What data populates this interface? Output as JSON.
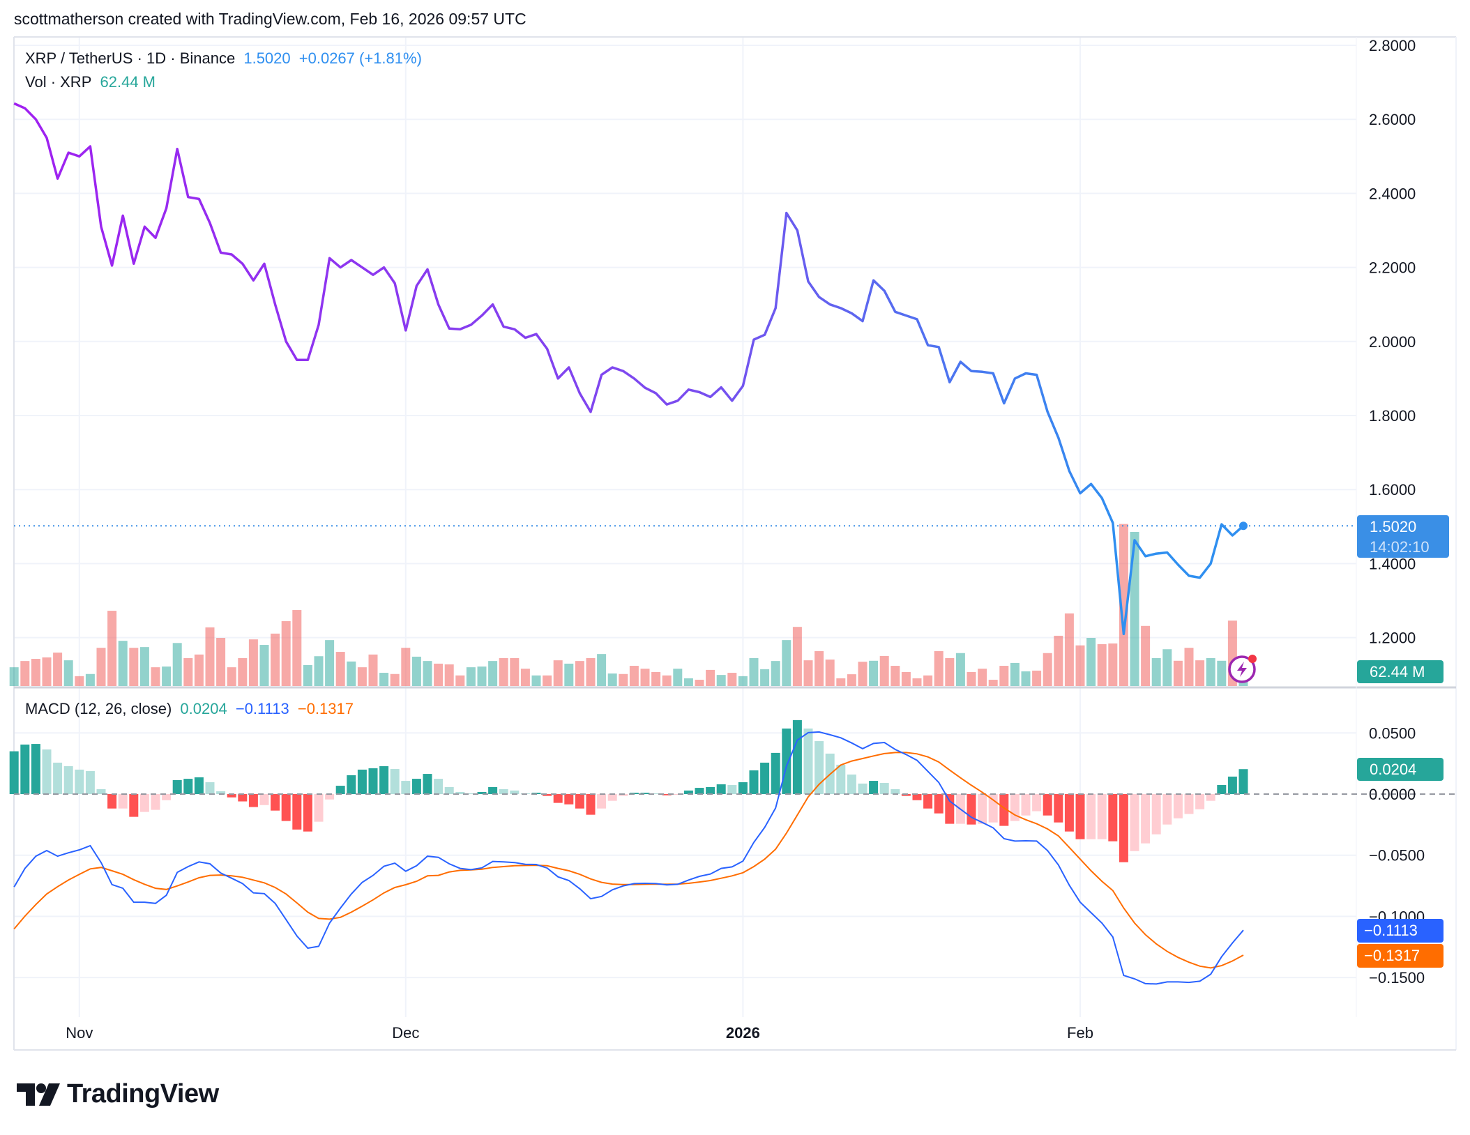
{
  "header": {
    "text": "scottmatherson created with TradingView.com, Feb 16, 2026 09:57 UTC"
  },
  "legend": {
    "symbol": "XRP / TetherUS · 1D · Binance",
    "price": "1.5020",
    "change": "+0.0267 (+1.81%)",
    "vol_label": "Vol · XRP",
    "vol_value": "62.44 M",
    "macd_label": "MACD (12, 26, close)",
    "macd_hist": "0.0204",
    "macd_line": "−0.1113",
    "macd_signal": "−0.1317"
  },
  "badges": {
    "price": "1.5020",
    "countdown": "14:02:10",
    "volume": "62.44 M",
    "hist": "0.0204",
    "macd": "−0.1113",
    "signal": "−0.1317"
  },
  "colors": {
    "line_start": "#a020f0",
    "line_mid": "#7a4cef",
    "line_end": "#2f8ff0",
    "up": "#26a69a",
    "down": "#ef5350",
    "hist_up_strong": "#26a69a",
    "hist_up_weak": "#b2dfdb",
    "hist_down_strong": "#ff5252",
    "hist_down_weak": "#ffcdd2",
    "macd": "#2962ff",
    "signal": "#ff6d00",
    "price_badge": "#3a8fe6"
  },
  "logo": {
    "text": "TradingView"
  },
  "chart_data": [
    {
      "type": "line",
      "title": "XRP / TetherUS · 1D · Binance",
      "ylim": [
        1.2,
        2.8
      ],
      "grid": true,
      "y_ticks": [
        {
          "value": 2.8,
          "label": "2.8000"
        },
        {
          "value": 2.6,
          "label": "2.6000"
        },
        {
          "value": 2.4,
          "label": "2.4000"
        },
        {
          "value": 2.2,
          "label": "2.2000"
        },
        {
          "value": 2.0,
          "label": "2.0000"
        },
        {
          "value": 1.8,
          "label": "1.8000"
        },
        {
          "value": 1.6,
          "label": "1.6000"
        },
        {
          "value": 1.4,
          "label": "1.4000"
        },
        {
          "value": 1.2,
          "label": "1.2000"
        }
      ],
      "x_ticks": [
        {
          "date": "2025-11-01",
          "label": "Nov"
        },
        {
          "date": "2025-12-01",
          "label": "Dec"
        },
        {
          "date": "2026-01-01",
          "label": "2026",
          "bold": true
        },
        {
          "date": "2026-02-01",
          "label": "Feb"
        }
      ],
      "dates": [
        "2025-10-26",
        "2025-10-27",
        "2025-10-28",
        "2025-10-29",
        "2025-10-30",
        "2025-10-31",
        "2025-11-01",
        "2025-11-02",
        "2025-11-03",
        "2025-11-04",
        "2025-11-05",
        "2025-11-06",
        "2025-11-07",
        "2025-11-08",
        "2025-11-09",
        "2025-11-10",
        "2025-11-11",
        "2025-11-12",
        "2025-11-13",
        "2025-11-14",
        "2025-11-15",
        "2025-11-16",
        "2025-11-17",
        "2025-11-18",
        "2025-11-19",
        "2025-11-20",
        "2025-11-21",
        "2025-11-22",
        "2025-11-23",
        "2025-11-24",
        "2025-11-25",
        "2025-11-26",
        "2025-11-27",
        "2025-11-28",
        "2025-11-29",
        "2025-11-30",
        "2025-12-01",
        "2025-12-02",
        "2025-12-03",
        "2025-12-04",
        "2025-12-05",
        "2025-12-06",
        "2025-12-07",
        "2025-12-08",
        "2025-12-09",
        "2025-12-10",
        "2025-12-11",
        "2025-12-12",
        "2025-12-13",
        "2025-12-14",
        "2025-12-15",
        "2025-12-16",
        "2025-12-17",
        "2025-12-18",
        "2025-12-19",
        "2025-12-20",
        "2025-12-21",
        "2025-12-22",
        "2025-12-23",
        "2025-12-24",
        "2025-12-25",
        "2025-12-26",
        "2025-12-27",
        "2025-12-28",
        "2025-12-29",
        "2025-12-30",
        "2025-12-31",
        "2026-01-01",
        "2026-01-02",
        "2026-01-03",
        "2026-01-04",
        "2026-01-05",
        "2026-01-06",
        "2026-01-07",
        "2026-01-08",
        "2026-01-09",
        "2026-01-10",
        "2026-01-11",
        "2026-01-12",
        "2026-01-13",
        "2026-01-14",
        "2026-01-15",
        "2026-01-16",
        "2026-01-17",
        "2026-01-18",
        "2026-01-19",
        "2026-01-20",
        "2026-01-21",
        "2026-01-22",
        "2026-01-23",
        "2026-01-24",
        "2026-01-25",
        "2026-01-26",
        "2026-01-27",
        "2026-01-28",
        "2026-01-29",
        "2026-01-30",
        "2026-01-31",
        "2026-02-01",
        "2026-02-02",
        "2026-02-03",
        "2026-02-04",
        "2026-02-05",
        "2026-02-06",
        "2026-02-07",
        "2026-02-08",
        "2026-02-09",
        "2026-02-10",
        "2026-02-11",
        "2026-02-12",
        "2026-02-13",
        "2026-02-14",
        "2026-02-15",
        "2026-02-16"
      ],
      "close": [
        2.643,
        2.63,
        2.6,
        2.55,
        2.44,
        2.51,
        2.5,
        2.527,
        2.31,
        2.205,
        2.34,
        2.21,
        2.31,
        2.28,
        2.36,
        2.52,
        2.39,
        2.385,
        2.32,
        2.24,
        2.235,
        2.21,
        2.165,
        2.21,
        2.1,
        2.0,
        1.95,
        1.95,
        2.045,
        2.225,
        2.2,
        2.22,
        2.2,
        2.18,
        2.2,
        2.157,
        2.03,
        2.15,
        2.195,
        2.1,
        2.035,
        2.033,
        2.045,
        2.07,
        2.1,
        2.04,
        2.033,
        2.01,
        2.02,
        1.98,
        1.9,
        1.93,
        1.86,
        1.81,
        1.91,
        1.93,
        1.92,
        1.9,
        1.875,
        1.86,
        1.83,
        1.84,
        1.87,
        1.863,
        1.85,
        1.876,
        1.84,
        1.88,
        2.005,
        2.018,
        2.09,
        2.347,
        2.3,
        2.162,
        2.12,
        2.1,
        2.09,
        2.076,
        2.055,
        2.165,
        2.137,
        2.08,
        2.07,
        2.06,
        1.99,
        1.985,
        1.89,
        1.945,
        1.92,
        1.918,
        1.914,
        1.833,
        1.9,
        1.914,
        1.91,
        1.81,
        1.74,
        1.65,
        1.59,
        1.615,
        1.577,
        1.51,
        1.21,
        1.463,
        1.42,
        1.427,
        1.43,
        1.397,
        1.367,
        1.362,
        1.4,
        1.506,
        1.476,
        1.502
      ],
      "last_value": 1.502
    },
    {
      "type": "bar",
      "title": "Vol · XRP",
      "unit": "M",
      "values": [
        78,
        104,
        113,
        119,
        139,
        107,
        41,
        50,
        159,
        313,
        188,
        159,
        162,
        78,
        81,
        179,
        116,
        131,
        244,
        200,
        78,
        116,
        194,
        171,
        218,
        270,
        316,
        87,
        124,
        191,
        142,
        102,
        78,
        131,
        55,
        50,
        159,
        122,
        104,
        93,
        90,
        44,
        78,
        81,
        104,
        116,
        116,
        72,
        44,
        44,
        107,
        93,
        104,
        116,
        133,
        52,
        50,
        84,
        72,
        58,
        44,
        72,
        32,
        26,
        67,
        46,
        55,
        41,
        116,
        70,
        104,
        191,
        246,
        107,
        145,
        110,
        32,
        49,
        101,
        105,
        125,
        84,
        58,
        32,
        44,
        145,
        116,
        137,
        58,
        72,
        26,
        84,
        96,
        61,
        64,
        137,
        209,
        302,
        169,
        200,
        174,
        177,
        674,
        641,
        250,
        116,
        153,
        105,
        159,
        107,
        116,
        105,
        272,
        62.44
      ]
    },
    {
      "type": "bar",
      "title": "MACD (12, 26, close)",
      "ylim": [
        -0.17,
        0.07
      ],
      "y_ticks": [
        {
          "value": 0.05,
          "label": "0.0500"
        },
        {
          "value": 0,
          "label": "0.0000"
        },
        {
          "value": -0.05,
          "label": "−0.0500"
        },
        {
          "value": -0.1,
          "label": "−0.1000"
        },
        {
          "value": -0.15,
          "label": "−0.1500"
        }
      ],
      "histogram": [
        0.035,
        0.0405,
        0.041,
        0.0365,
        0.0257,
        0.0228,
        0.02,
        0.0188,
        0.004,
        -0.0118,
        -0.0118,
        -0.0186,
        -0.0146,
        -0.0129,
        -0.005,
        0.0114,
        0.0125,
        0.0137,
        0.0097,
        0.0023,
        -0.0027,
        -0.006,
        -0.0106,
        -0.009,
        -0.0135,
        -0.022,
        -0.029,
        -0.0306,
        -0.0226,
        -0.0044,
        0.0068,
        0.0154,
        0.02,
        0.0211,
        0.0228,
        0.0205,
        0.0108,
        0.0125,
        0.0165,
        0.0125,
        0.0057,
        0.0017,
        0.0006,
        0.0017,
        0.0057,
        0.004,
        0.0029,
        0.0006,
        0.0011,
        -0.0015,
        -0.0072,
        -0.0084,
        -0.0118,
        -0.0169,
        -0.0118,
        -0.0055,
        -0.0015,
        0.0011,
        0.0011,
        0.0006,
        -0.001,
        -0.0002,
        0.0029,
        0.0051,
        0.0057,
        0.008,
        0.0074,
        0.0097,
        0.0194,
        0.0257,
        0.0337,
        0.0536,
        0.0605,
        0.0536,
        0.0433,
        0.0331,
        0.024,
        0.016,
        0.0086,
        0.0108,
        0.0091,
        0.004,
        -0.0015,
        -0.005,
        -0.0118,
        -0.0158,
        -0.0243,
        -0.0243,
        -0.0249,
        -0.0243,
        -0.0232,
        -0.026,
        -0.022,
        -0.0175,
        -0.014,
        -0.0175,
        -0.0232,
        -0.0306,
        -0.0369,
        -0.0369,
        -0.0369,
        -0.0386,
        -0.0557,
        -0.0466,
        -0.0403,
        -0.0329,
        -0.0249,
        -0.0198,
        -0.0163,
        -0.0124,
        -0.0055,
        0.0074,
        0.0143,
        0.0204
      ],
      "macd": [
        -0.076,
        -0.0608,
        -0.0508,
        -0.0462,
        -0.0508,
        -0.048,
        -0.0456,
        -0.0422,
        -0.056,
        -0.074,
        -0.077,
        -0.0884,
        -0.0884,
        -0.0894,
        -0.0827,
        -0.064,
        -0.0593,
        -0.0555,
        -0.057,
        -0.0646,
        -0.0688,
        -0.0732,
        -0.0808,
        -0.0814,
        -0.0894,
        -0.1027,
        -0.116,
        -0.126,
        -0.1245,
        -0.1055,
        -0.0932,
        -0.0817,
        -0.0722,
        -0.0665,
        -0.059,
        -0.0565,
        -0.0631,
        -0.0586,
        -0.0508,
        -0.0517,
        -0.057,
        -0.0608,
        -0.0618,
        -0.0603,
        -0.0551,
        -0.0555,
        -0.056,
        -0.0574,
        -0.0576,
        -0.0605,
        -0.0677,
        -0.0707,
        -0.0774,
        -0.0856,
        -0.0837,
        -0.0783,
        -0.0751,
        -0.0732,
        -0.073,
        -0.0732,
        -0.0743,
        -0.0738,
        -0.0703,
        -0.0673,
        -0.0654,
        -0.0608,
        -0.0595,
        -0.0548,
        -0.0395,
        -0.0272,
        -0.0114,
        0.0228,
        0.0441,
        0.0502,
        0.0508,
        0.0485,
        0.046,
        0.0418,
        0.0371,
        0.0414,
        0.0422,
        0.0365,
        0.0323,
        0.0276,
        0.0186,
        0.0095,
        -0.0057,
        -0.0124,
        -0.019,
        -0.0232,
        -0.0276,
        -0.0365,
        -0.0384,
        -0.0382,
        -0.0384,
        -0.0462,
        -0.058,
        -0.0745,
        -0.0884,
        -0.097,
        -0.1055,
        -0.1169,
        -0.1483,
        -0.1511,
        -0.155,
        -0.1553,
        -0.1536,
        -0.1536,
        -0.154,
        -0.153,
        -0.1473,
        -0.133,
        -0.1217,
        -0.1113
      ],
      "signal": [
        -0.1103,
        -0.0998,
        -0.0903,
        -0.0817,
        -0.0757,
        -0.0703,
        -0.0656,
        -0.0612,
        -0.06,
        -0.0627,
        -0.0656,
        -0.07,
        -0.0738,
        -0.077,
        -0.078,
        -0.0751,
        -0.0719,
        -0.0684,
        -0.0665,
        -0.0662,
        -0.0669,
        -0.068,
        -0.0703,
        -0.0726,
        -0.0764,
        -0.0817,
        -0.089,
        -0.0966,
        -0.1017,
        -0.1023,
        -0.1008,
        -0.0966,
        -0.0916,
        -0.0865,
        -0.0808,
        -0.0764,
        -0.0741,
        -0.0713,
        -0.0669,
        -0.0665,
        -0.0637,
        -0.0624,
        -0.062,
        -0.0614,
        -0.06,
        -0.0593,
        -0.0586,
        -0.0584,
        -0.0582,
        -0.0586,
        -0.0608,
        -0.0627,
        -0.0656,
        -0.0694,
        -0.0722,
        -0.0736,
        -0.074,
        -0.074,
        -0.0738,
        -0.0736,
        -0.0738,
        -0.0736,
        -0.073,
        -0.0719,
        -0.0707,
        -0.0688,
        -0.0669,
        -0.0643,
        -0.0593,
        -0.0532,
        -0.0451,
        -0.0319,
        -0.0171,
        -0.0023,
        0.008,
        0.0162,
        0.0238,
        0.027,
        0.0291,
        0.0312,
        0.0331,
        0.034,
        0.034,
        0.0329,
        0.0304,
        0.0262,
        0.0196,
        0.0133,
        0.0072,
        0.0015,
        -0.0048,
        -0.0114,
        -0.0171,
        -0.021,
        -0.0243,
        -0.0285,
        -0.0342,
        -0.0437,
        -0.0532,
        -0.0627,
        -0.0713,
        -0.0789,
        -0.0932,
        -0.1055,
        -0.115,
        -0.1226,
        -0.1287,
        -0.1336,
        -0.1375,
        -0.1407,
        -0.1422,
        -0.1403,
        -0.1365,
        -0.1317
      ]
    }
  ]
}
